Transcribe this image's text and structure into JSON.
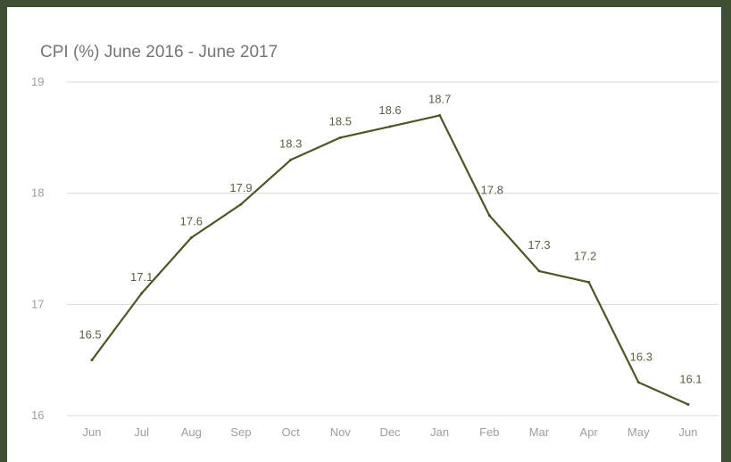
{
  "chart_data": {
    "type": "line",
    "title": "CPI (%) June 2016 - June 2017",
    "xlabel": "",
    "ylabel": "",
    "categories": [
      "Jun",
      "Jul",
      "Aug",
      "Sep",
      "Oct",
      "Nov",
      "Dec",
      "Jan",
      "Feb",
      "Mar",
      "Apr",
      "May",
      "Jun"
    ],
    "series": [
      {
        "values": [
          16.5,
          17.1,
          17.6,
          17.9,
          18.3,
          18.5,
          18.6,
          18.7,
          17.8,
          17.3,
          17.2,
          16.3,
          16.1
        ]
      }
    ],
    "ylim": [
      16,
      19
    ],
    "yticks": [
      "16",
      "17",
      "18",
      "19"
    ],
    "grid": true,
    "legend": "none",
    "colors": {
      "line": "#4f5527",
      "frame": "#3f4f36"
    }
  }
}
